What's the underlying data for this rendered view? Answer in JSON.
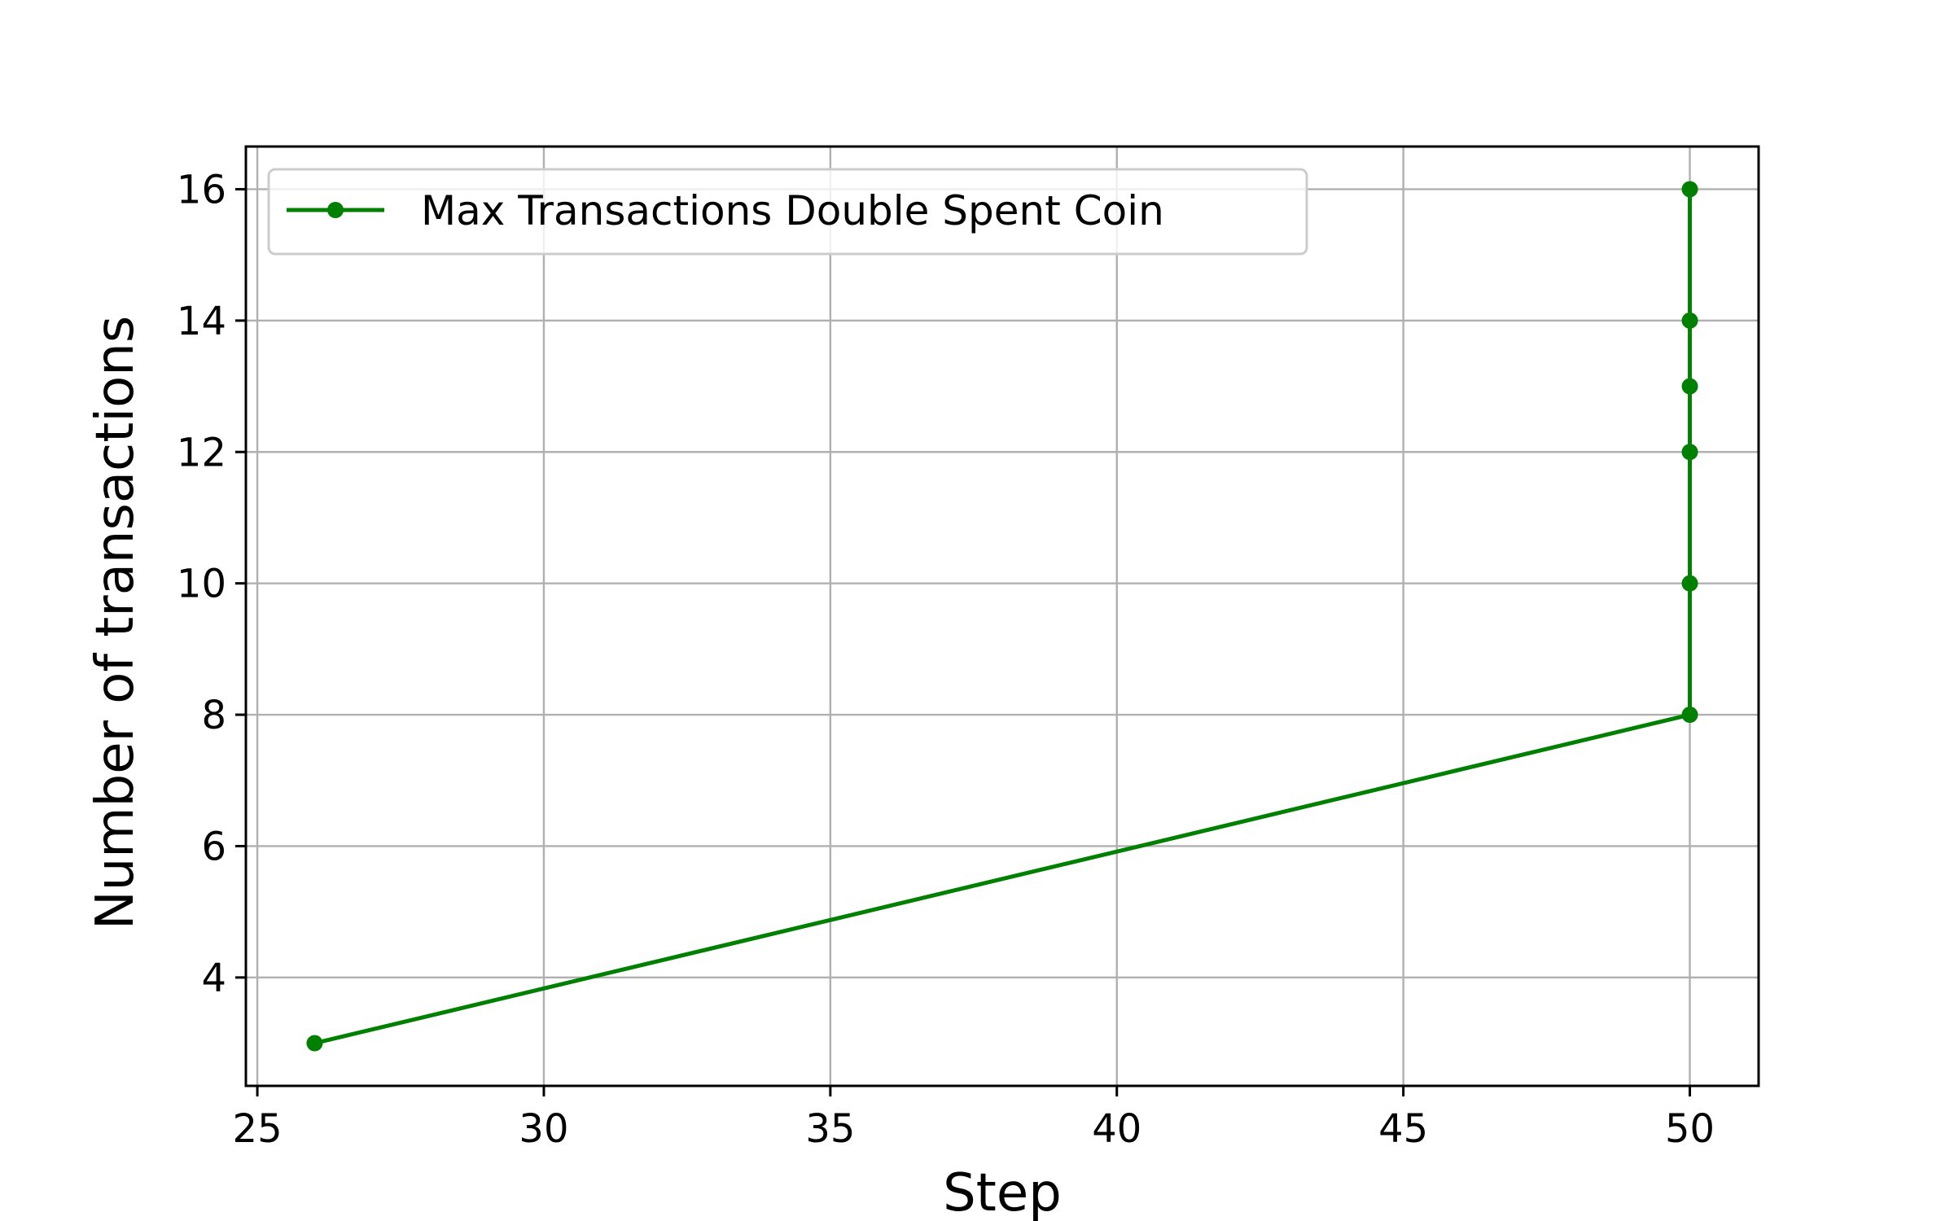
{
  "chart_data": {
    "type": "line",
    "title": "",
    "xlabel": "Step",
    "ylabel": "Number of transactions",
    "xlim": [
      24.8,
      51.2
    ],
    "ylim": [
      2.35,
      16.65
    ],
    "xticks": [
      25,
      30,
      35,
      40,
      45,
      50
    ],
    "yticks": [
      4,
      6,
      8,
      10,
      12,
      14,
      16
    ],
    "xtick_labels": [
      "25",
      "30",
      "35",
      "40",
      "45",
      "50"
    ],
    "ytick_labels": [
      "4",
      "6",
      "8",
      "10",
      "12",
      "14",
      "16"
    ],
    "grid": true,
    "legend_position": "upper-left",
    "series": [
      {
        "name": "Max Transactions Double Spent Coin",
        "color": "#008000",
        "marker": "circle",
        "x": [
          26,
          50,
          50,
          50,
          50,
          50,
          50
        ],
        "y": [
          3,
          8,
          10,
          12,
          13,
          14,
          16
        ]
      }
    ]
  }
}
